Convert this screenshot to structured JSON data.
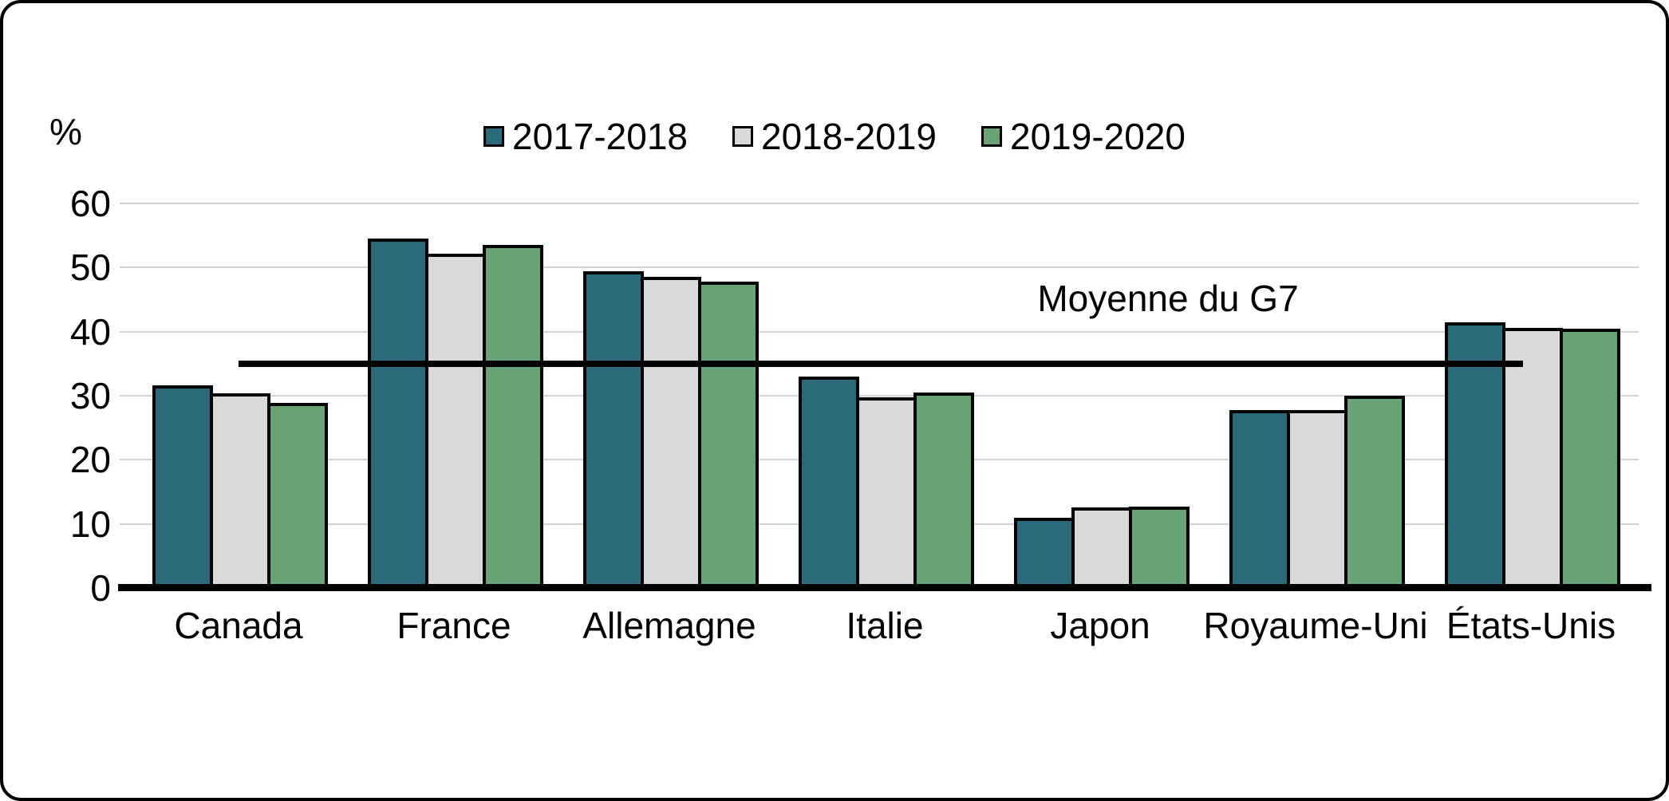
{
  "chart_data": {
    "type": "bar",
    "title": "",
    "unit": "%",
    "categories": [
      "Canada",
      "France",
      "Allemagne",
      "Italie",
      "Japon",
      "Royaume-Uni",
      "États-Unis"
    ],
    "series": [
      {
        "name": "2017-2018",
        "color": "#2B6A7B",
        "values": [
          31.6,
          54.5,
          49.4,
          33.0,
          11.0,
          27.8,
          41.5
        ]
      },
      {
        "name": "2018-2019",
        "color": "#D9D9D9",
        "values": [
          30.4,
          52.1,
          48.5,
          29.7,
          12.6,
          27.7,
          40.6
        ]
      },
      {
        "name": "2019-2020",
        "color": "#6AA376",
        "values": [
          28.9,
          53.5,
          47.8,
          30.5,
          12.7,
          30.0,
          40.4
        ]
      }
    ],
    "xlabel": "",
    "ylabel": "%",
    "ylim": [
      0,
      60
    ],
    "yticks": [
      0,
      10,
      20,
      30,
      40,
      50,
      60
    ],
    "grid": true,
    "legend_position": "top-center",
    "reference_line": {
      "label": "Moyenne du G7",
      "value": 35
    },
    "colors": {
      "bar_outline": "#000000",
      "gridline": "#D3D3D3",
      "axis": "#000000",
      "background": "#FFFFFF"
    }
  }
}
